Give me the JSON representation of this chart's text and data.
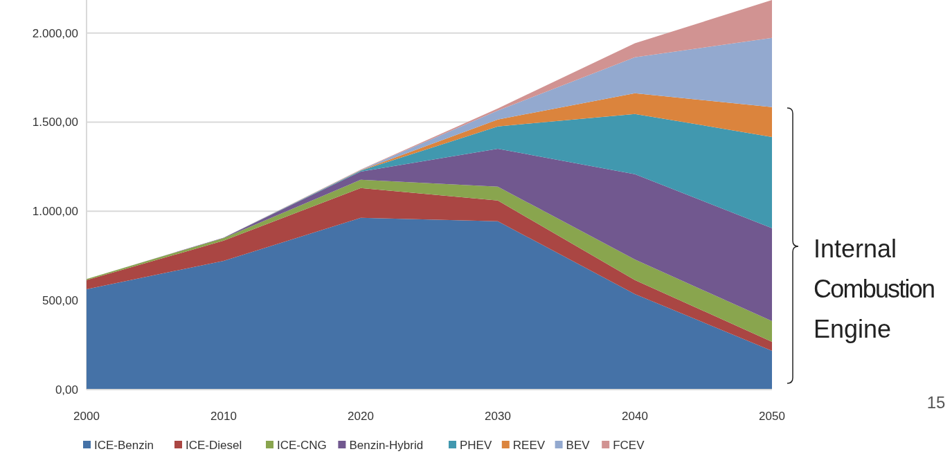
{
  "chart_data": {
    "type": "area",
    "stacked": true,
    "x": [
      2000,
      2010,
      2020,
      2030,
      2040,
      2050
    ],
    "xlim": [
      2000,
      2050
    ],
    "xticks": [
      2000,
      2010,
      2020,
      2030,
      2040,
      2050
    ],
    "ylim": [
      0,
      2185
    ],
    "yticks": [
      {
        "value": 0,
        "label": "0,00"
      },
      {
        "value": 500,
        "label": "500,00"
      },
      {
        "value": 1000,
        "label": "1.000,00"
      },
      {
        "value": 1500,
        "label": "1.500,00"
      },
      {
        "value": 2000,
        "label": "2.000,00"
      }
    ],
    "grid": "y",
    "legend": "bottom",
    "series": [
      {
        "name": "ICE-Benzin",
        "color": "#4572a7",
        "values": [
          563,
          722,
          963,
          944,
          536,
          217
        ]
      },
      {
        "name": "ICE-Diesel",
        "color": "#aa4643",
        "values": [
          51,
          113,
          167,
          116,
          78,
          51
        ]
      },
      {
        "name": "ICE-CNG",
        "color": "#89a54e",
        "values": [
          6,
          15,
          47,
          78,
          116,
          116
        ]
      },
      {
        "name": "Benzin-Hybrid",
        "color": "#71588f",
        "values": [
          0,
          2,
          46,
          213,
          478,
          521
        ]
      },
      {
        "name": "PHEV",
        "color": "#4198af",
        "values": [
          0,
          0,
          5,
          125,
          338,
          512
        ]
      },
      {
        "name": "REEV",
        "color": "#db843d",
        "values": [
          0,
          0,
          2,
          39,
          116,
          167
        ]
      },
      {
        "name": "BEV",
        "color": "#93a9cf",
        "values": [
          0,
          0,
          2,
          50,
          202,
          389
        ]
      },
      {
        "name": "FCEV",
        "color": "#d19392",
        "values": [
          0,
          0,
          2,
          12,
          78,
          212
        ]
      }
    ],
    "annotations": [
      "Internal Combustion Engine",
      "15"
    ]
  }
}
